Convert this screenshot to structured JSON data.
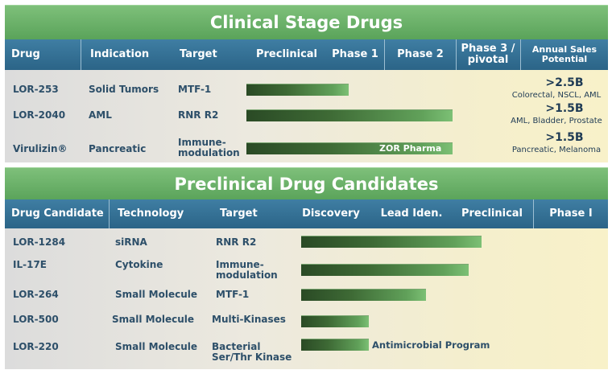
{
  "clinical": {
    "title": "Clinical Stage Drugs",
    "headers": {
      "drug": "Drug",
      "indication": "Indication",
      "target": "Target",
      "preclinical": "Preclinical",
      "phase1": "Phase 1",
      "phase2": "Phase 2",
      "phase3": "Phase 3 /\npivotal",
      "sales": "Annual Sales\nPotential"
    },
    "rows": [
      {
        "drug": "LOR-253",
        "indication": "Solid Tumors",
        "target": "MTF-1",
        "bar_label": "",
        "sales": ">2.5B",
        "sales_detail": "Colorectal, NSCL, AML",
        "progress_pct": 50
      },
      {
        "drug": "LOR-2040",
        "indication": "AML",
        "target": "RNR R2",
        "bar_label": "",
        "sales": ">1.5B",
        "sales_detail": "AML, Bladder, Prostate",
        "progress_pct": 100
      },
      {
        "drug": "Virulizin®",
        "indication": "Pancreatic",
        "target": "Immune-\nmodulation",
        "bar_label": "ZOR Pharma",
        "sales": ">1.5B",
        "sales_detail": "Pancreatic, Melanoma",
        "progress_pct": 100
      }
    ]
  },
  "preclinical": {
    "title": "Preclinical Drug Candidates",
    "headers": {
      "candidate": "Drug Candidate",
      "technology": "Technology",
      "target": "Target",
      "discovery": "Discovery",
      "lead": "Lead Iden.",
      "preclinical": "Preclinical",
      "phase1": "Phase I"
    },
    "rows": [
      {
        "drug": "LOR-1284",
        "technology": "siRNA",
        "target": "RNR R2",
        "note": "",
        "progress_pct": 80
      },
      {
        "drug": "IL-17E",
        "technology": "Cytokine",
        "target": "Immune-\nmodulation",
        "note": "",
        "progress_pct": 75
      },
      {
        "drug": "LOR-264",
        "technology": "Small Molecule",
        "target": "MTF-1",
        "note": "",
        "progress_pct": 56
      },
      {
        "drug": "LOR-500",
        "technology": "Small Molecule",
        "target": "Multi-Kinases",
        "note": "",
        "progress_pct": 30
      },
      {
        "drug": "LOR-220",
        "technology": "Small Molecule",
        "target": "Bacterial\nSer/Thr Kinase",
        "note": "Antimicrobial Program",
        "progress_pct": 30
      }
    ]
  }
}
